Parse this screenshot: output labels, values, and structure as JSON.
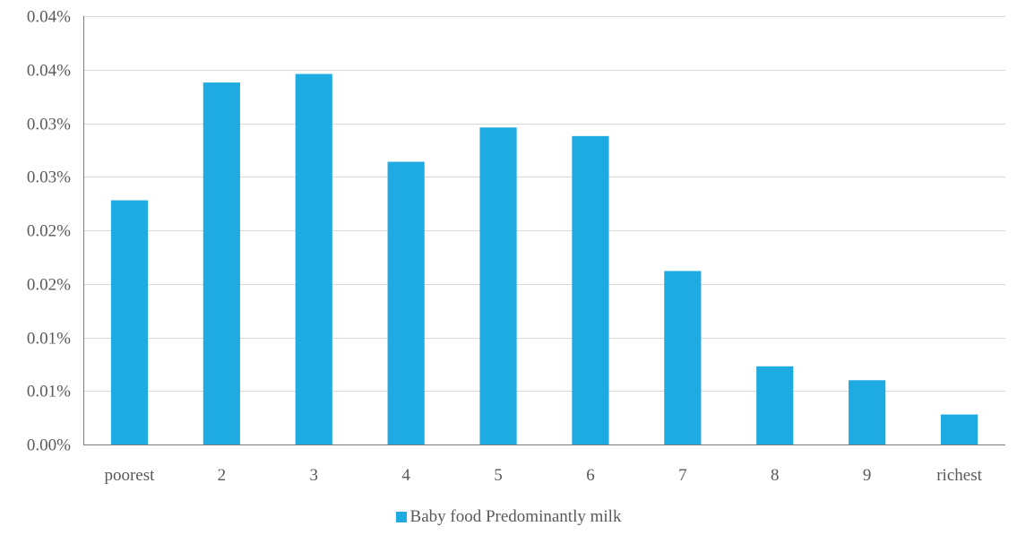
{
  "chart_data": {
    "type": "bar",
    "categories": [
      "poorest",
      "2",
      "3",
      "4",
      "5",
      "6",
      "7",
      "8",
      "9",
      "richest"
    ],
    "series": [
      {
        "name": "Baby food Predominantly milk",
        "values": [
          0.0228,
          0.0338,
          0.0346,
          0.0264,
          0.0296,
          0.0288,
          0.0162,
          0.0073,
          0.006,
          0.0028
        ],
        "color": "#1DABE2"
      }
    ],
    "ylim": [
      0,
      0.04
    ],
    "yticks": [
      0,
      0.005,
      0.01,
      0.015,
      0.02,
      0.025,
      0.03,
      0.035,
      0.04
    ],
    "ytick_labels": [
      "0.00%",
      "0.01%",
      "0.01%",
      "0.02%",
      "0.02%",
      "0.03%",
      "0.03%",
      "0.04%",
      "0.04%"
    ],
    "grid": true,
    "legend_position": "bottom",
    "gridline_color": "#D9D9D9",
    "axis_color": "#7F7F7F",
    "text_color": "#595959"
  }
}
